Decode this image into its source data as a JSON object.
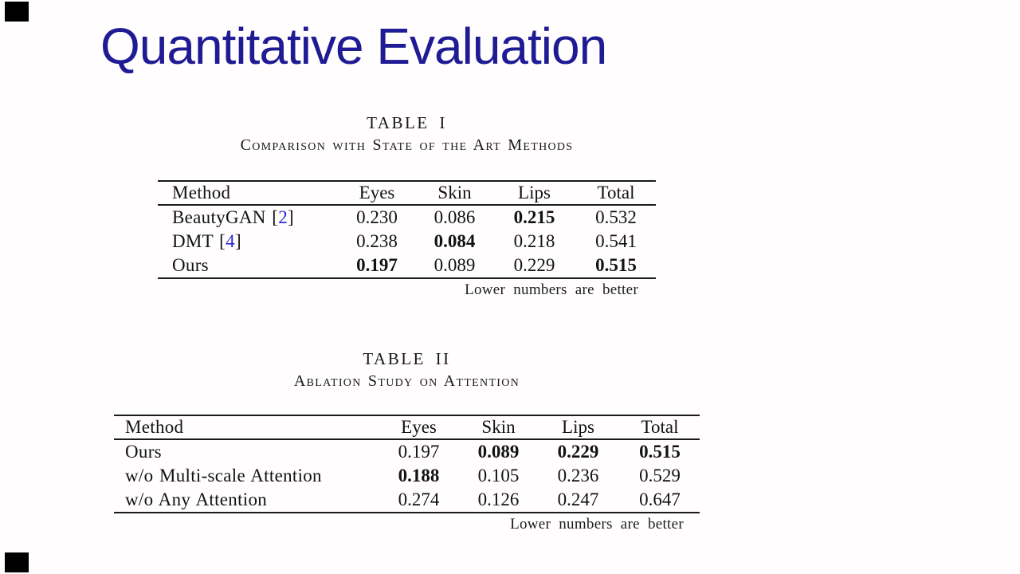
{
  "slide": {
    "title": "Quantitative Evaluation"
  },
  "colors": {
    "title_navy": "#1e1b94",
    "citation_blue": "#2b2bd6",
    "rule_black": "#1a1a1a",
    "background": "#fffdfd",
    "corner_marker": "#000000"
  },
  "table1": {
    "caption": "TABLE I",
    "subcaption": "Comparison with State of the Art Methods",
    "note": "Lower numbers are better",
    "columns": [
      "Method",
      "Eyes",
      "Skin",
      "Lips",
      "Total"
    ],
    "rows": [
      {
        "method": "BeautyGAN",
        "cite": "2",
        "values": [
          "0.230",
          "0.086",
          "0.215",
          "0.532"
        ],
        "bold": [
          false,
          false,
          true,
          false
        ]
      },
      {
        "method": "DMT",
        "cite": "4",
        "values": [
          "0.238",
          "0.084",
          "0.218",
          "0.541"
        ],
        "bold": [
          false,
          true,
          false,
          false
        ]
      },
      {
        "method": "Ours",
        "cite": null,
        "values": [
          "0.197",
          "0.089",
          "0.229",
          "0.515"
        ],
        "bold": [
          true,
          false,
          false,
          true
        ]
      }
    ]
  },
  "table2": {
    "caption": "TABLE II",
    "subcaption": "Ablation Study on Attention",
    "note": "Lower numbers are better",
    "columns": [
      "Method",
      "Eyes",
      "Skin",
      "Lips",
      "Total"
    ],
    "rows": [
      {
        "method": "Ours",
        "cite": null,
        "values": [
          "0.197",
          "0.089",
          "0.229",
          "0.515"
        ],
        "bold": [
          false,
          true,
          true,
          true
        ]
      },
      {
        "method": "w/o Multi-scale Attention",
        "cite": null,
        "values": [
          "0.188",
          "0.105",
          "0.236",
          "0.529"
        ],
        "bold": [
          true,
          false,
          false,
          false
        ]
      },
      {
        "method": "w/o Any Attention",
        "cite": null,
        "values": [
          "0.274",
          "0.126",
          "0.247",
          "0.647"
        ],
        "bold": [
          false,
          false,
          false,
          false
        ]
      }
    ]
  }
}
